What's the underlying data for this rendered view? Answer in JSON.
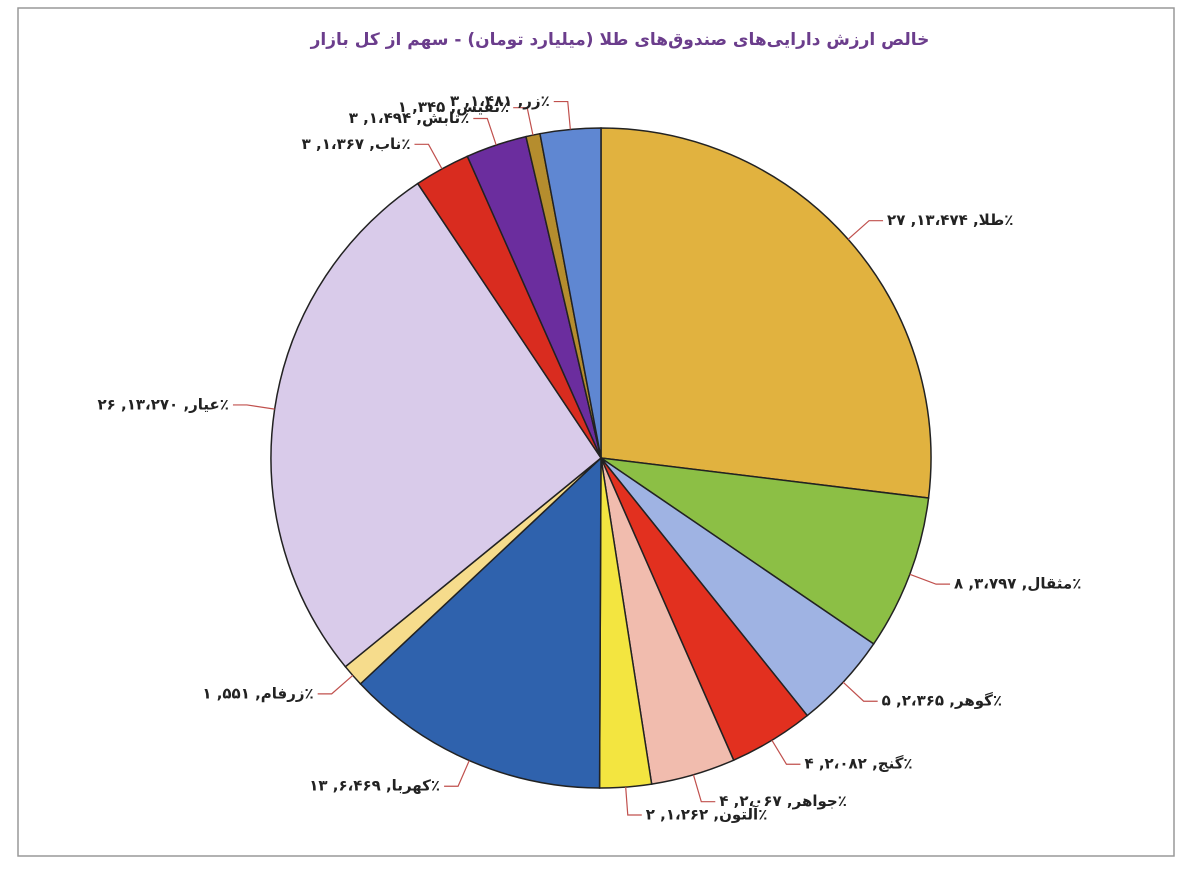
{
  "chart_data": {
    "type": "pie",
    "title": "خالص ارزش دارایی‌های صندوق‌های طلا (میلیارد تومان) - سهم از کل بازار",
    "values": [
      13474,
      3797,
      2365,
      2082,
      2067,
      1262,
      6469,
      551,
      13270,
      1367,
      1494,
      345,
      1481
    ],
    "value_labels": [
      "طلا, ۱۳،۴۷۴, ۲۷٪",
      "مثقال, ۳،۷۹۷, ۸٪",
      "گوهر, ۲،۳۶۵, ۵٪",
      "گنج, ۲،۰۸۲, ۴٪",
      "جواهر, ۲،۰۶۷, ۴٪",
      "آلتون, ۱،۲۶۲, ۲٪",
      "کهربا, ۶،۴۶۹, ۱۳٪",
      "زرفام, ۵۵۱, ۱٪",
      "عیار, ۱۳،۲۷۰, ۲۶٪",
      "ناب, ۱،۳۶۷, ۳٪",
      "تابش, ۱،۴۹۴, ۳٪",
      "نفیس, ۳۴۵, ۱٪",
      "زر, ۱،۴۸۱, ۳٪"
    ],
    "colors": [
      "#e1b23f",
      "#8cbf45",
      "#9fb3e3",
      "#e2301f",
      "#f1bcae",
      "#f3e540",
      "#2f62ad",
      "#f6dc8c",
      "#d9cbea",
      "#d92c1f",
      "#6b2d9e",
      "#b58d2e",
      "#5f87d2"
    ]
  }
}
